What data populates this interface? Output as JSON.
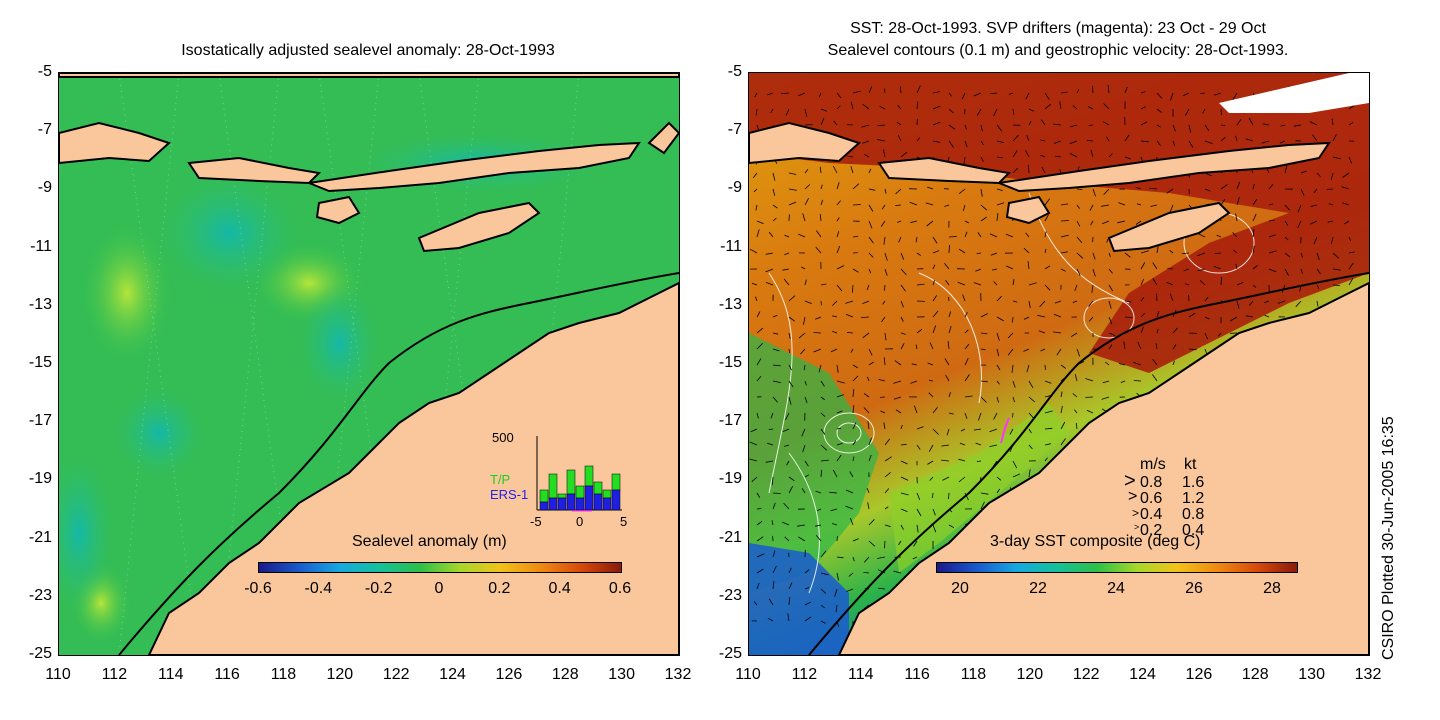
{
  "left": {
    "title": "Isostatically adjusted sealevel anomaly: 28-Oct-1993",
    "colorbar": {
      "label": "Sealevel anomaly (m)",
      "ticks": [
        "-0.6",
        "-0.4",
        "-0.2",
        "0",
        "0.2",
        "0.4",
        "0.6"
      ]
    },
    "inset": {
      "ymax_label": "500",
      "series": [
        "T/P",
        "ERS-1"
      ],
      "xticks": [
        "-5",
        "0",
        "5"
      ],
      "tp_values": [
        0.5,
        0.9,
        0.4,
        1.0,
        0.6,
        1.1,
        0.7,
        0.5,
        0.9
      ],
      "ers_values": [
        0.2,
        0.3,
        0.3,
        0.4,
        0.3,
        0.6,
        0.4,
        0.3,
        0.5
      ]
    }
  },
  "right": {
    "title_line1": "SST: 28-Oct-1993. SVP drifters (magenta): 23 Oct - 29 Oct",
    "title_line2": "Sealevel contours (0.1 m) and geostrophic velocity: 28-Oct-1993.",
    "colorbar": {
      "label": "3-day SST composite (deg C)",
      "ticks": [
        "20",
        "22",
        "24",
        "26",
        "28"
      ]
    },
    "velocity_legend": {
      "header_ms": "m/s",
      "header_kt": "kt",
      "rows": [
        {
          "ms": "0.8",
          "kt": "1.6"
        },
        {
          "ms": "0.6",
          "kt": "1.2"
        },
        {
          "ms": "0.4",
          "kt": "0.8"
        },
        {
          "ms": "0.2",
          "kt": "0.4"
        }
      ]
    }
  },
  "axes": {
    "y_ticks": [
      "-5",
      "-7",
      "-9",
      "-11",
      "-13",
      "-15",
      "-17",
      "-19",
      "-21",
      "-23",
      "-25"
    ],
    "x_ticks": [
      "110",
      "112",
      "114",
      "116",
      "118",
      "120",
      "122",
      "124",
      "126",
      "128",
      "130",
      "132"
    ]
  },
  "credit": "CSIRO Plotted 30-Jun-2005 16:35",
  "colors": {
    "land": "#f9c79b",
    "sla_ocean": "#35c04a",
    "sst_warm": "#a81a0a",
    "sst_mid": "#d9760f",
    "sst_cool": "#1a9a4a"
  }
}
